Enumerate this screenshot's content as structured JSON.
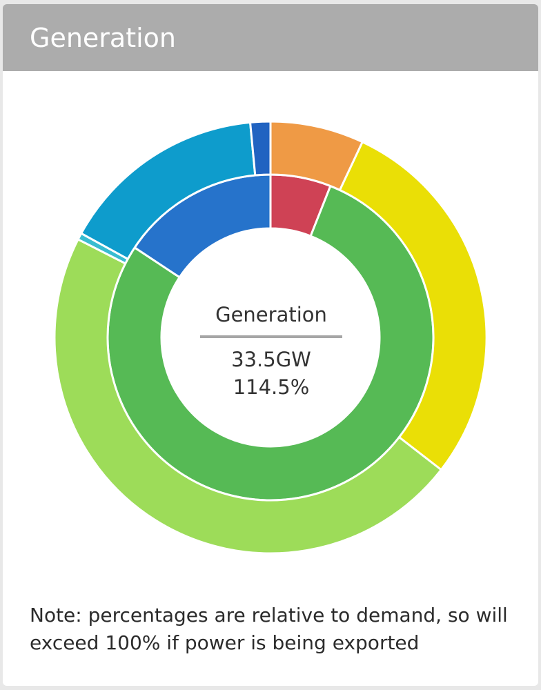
{
  "header": {
    "title": "Generation"
  },
  "center": {
    "title": "Generation",
    "value": "33.5GW",
    "percent": "114.5%"
  },
  "note": "Note: percentages are relative to demand, so will exceed 100% if power is being exported",
  "chart_data": {
    "type": "pie",
    "title": "Generation",
    "total": "33.5GW",
    "total_percent": "114.5%",
    "rings": [
      {
        "ring": "inner",
        "slices": [
          {
            "value": 6.0,
            "color": "#cf4255"
          },
          {
            "value": 78.3,
            "color": "#56ba55"
          },
          {
            "value": 15.7,
            "color": "#2673cb"
          }
        ]
      },
      {
        "ring": "outer",
        "slices": [
          {
            "value": 7.0,
            "color": "#ef9a45"
          },
          {
            "value": 28.5,
            "color": "#eadf06"
          },
          {
            "value": 47.0,
            "color": "#9ddc59"
          },
          {
            "value": 0.5,
            "color": "#38bcd0"
          },
          {
            "value": 15.5,
            "color": "#0e9ccc"
          },
          {
            "value": 1.5,
            "color": "#2163c1"
          }
        ]
      }
    ]
  }
}
